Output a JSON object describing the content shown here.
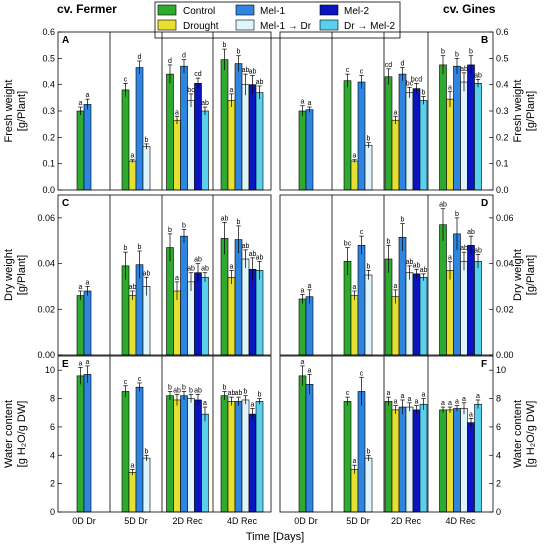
{
  "cultivars": [
    "cv. Fermer",
    "cv. Gines"
  ],
  "xlabel": "Time [Days]",
  "legend": {
    "entries": [
      {
        "key": "control",
        "name": "Control"
      },
      {
        "key": "drought",
        "name": "Drought"
      },
      {
        "key": "mel1",
        "name": "Mel-1"
      },
      {
        "key": "mel1dr",
        "name": "Mel-1 → Dr"
      },
      {
        "key": "mel2",
        "name": "Mel-2"
      },
      {
        "key": "drmel2",
        "name": "Dr → Mel-2"
      }
    ],
    "placement": "top-center"
  },
  "colors": {
    "control": "#2eaa2e",
    "drought": "#e8e030",
    "mel1": "#2f86e0",
    "mel1dr": "#dff4fb",
    "mel2": "#0a14c0",
    "drmel2": "#58d0ee"
  },
  "rows": [
    {
      "panel_left": "A",
      "panel_right": "B",
      "ylabel": [
        "Fresh weight",
        "[g/Plant]"
      ],
      "ylim": [
        0,
        0.6
      ],
      "ticks": [
        "0.0",
        "0.1",
        "0.2",
        "0.3",
        "0.4",
        "0.5",
        "0.6"
      ]
    },
    {
      "panel_left": "C",
      "panel_right": "D",
      "ylabel": [
        "Dry weight",
        "[g/Plant]"
      ],
      "ylim": [
        0,
        0.07
      ],
      "ticks": [
        "0.00",
        "0.02",
        "0.04",
        "0.06"
      ]
    },
    {
      "panel_left": "E",
      "panel_right": "F",
      "ylabel": [
        "Water content",
        "[g H₂O/g DW]"
      ],
      "ylim": [
        0,
        11
      ],
      "ticks": [
        "0",
        "2",
        "4",
        "6",
        "8",
        "10"
      ]
    }
  ],
  "chart_data": [
    {
      "type": "bar",
      "title": "cv. Fermer",
      "panel": "A",
      "ylabel": "Fresh weight [g/Plant]",
      "ylim": [
        0,
        0.6
      ],
      "categories": [
        "0D Dr",
        "5D Dr",
        "2D Rec",
        "4D Rec"
      ],
      "groups": [
        {
          "category": "0D Dr",
          "bars": [
            {
              "s": "control",
              "v": 0.3,
              "e": 0.015,
              "l": "a"
            },
            {
              "s": "mel1",
              "v": 0.325,
              "e": 0.02,
              "l": "a"
            }
          ]
        },
        {
          "category": "5D Dr",
          "bars": [
            {
              "s": "control",
              "v": 0.38,
              "e": 0.025,
              "l": "c"
            },
            {
              "s": "drought",
              "v": 0.11,
              "e": 0.005,
              "l": "a"
            },
            {
              "s": "mel1",
              "v": 0.465,
              "e": 0.025,
              "l": "d"
            },
            {
              "s": "mel1dr",
              "v": 0.165,
              "e": 0.01,
              "l": "b"
            }
          ]
        },
        {
          "category": "2D Rec",
          "bars": [
            {
              "s": "control",
              "v": 0.44,
              "e": 0.035,
              "l": "d"
            },
            {
              "s": "drought",
              "v": 0.265,
              "e": 0.015,
              "l": "a"
            },
            {
              "s": "mel1",
              "v": 0.47,
              "e": 0.025,
              "l": "d"
            },
            {
              "s": "mel1dr",
              "v": 0.34,
              "e": 0.025,
              "l": "bc"
            },
            {
              "s": "mel2",
              "v": 0.405,
              "e": 0.02,
              "l": "cd"
            },
            {
              "s": "drmel2",
              "v": 0.3,
              "e": 0.015,
              "l": "ab"
            }
          ]
        },
        {
          "category": "4D Rec",
          "bars": [
            {
              "s": "control",
              "v": 0.495,
              "e": 0.04,
              "l": "b"
            },
            {
              "s": "drought",
              "v": 0.34,
              "e": 0.025,
              "l": "a"
            },
            {
              "s": "mel1",
              "v": 0.48,
              "e": 0.03,
              "l": "b"
            },
            {
              "s": "mel1dr",
              "v": 0.4,
              "e": 0.04,
              "l": "ab"
            },
            {
              "s": "mel2",
              "v": 0.4,
              "e": 0.035,
              "l": "ab"
            },
            {
              "s": "drmel2",
              "v": 0.37,
              "e": 0.025,
              "l": "ab"
            }
          ]
        }
      ]
    },
    {
      "type": "bar",
      "title": "cv. Gines",
      "panel": "B",
      "ylabel": "Fresh weight [g/Plant]",
      "ylim": [
        0,
        0.6
      ],
      "categories": [
        "0D Dr",
        "5D Dr",
        "2D Rec",
        "4D Rec"
      ],
      "groups": [
        {
          "category": "0D Dr",
          "bars": [
            {
              "s": "control",
              "v": 0.3,
              "e": 0.02,
              "l": "a"
            },
            {
              "s": "mel1",
              "v": 0.305,
              "e": 0.01,
              "l": "a"
            }
          ]
        },
        {
          "category": "5D Dr",
          "bars": [
            {
              "s": "control",
              "v": 0.415,
              "e": 0.025,
              "l": "c"
            },
            {
              "s": "drought",
              "v": 0.11,
              "e": 0.005,
              "l": "a"
            },
            {
              "s": "mel1",
              "v": 0.41,
              "e": 0.025,
              "l": "c"
            },
            {
              "s": "mel1dr",
              "v": 0.17,
              "e": 0.01,
              "l": "b"
            }
          ]
        },
        {
          "category": "2D Rec",
          "bars": [
            {
              "s": "control",
              "v": 0.43,
              "e": 0.03,
              "l": "cd"
            },
            {
              "s": "drought",
              "v": 0.265,
              "e": 0.015,
              "l": "a"
            },
            {
              "s": "mel1",
              "v": 0.44,
              "e": 0.025,
              "l": "d"
            },
            {
              "s": "mel1dr",
              "v": 0.37,
              "e": 0.02,
              "l": "bc"
            },
            {
              "s": "mel2",
              "v": 0.385,
              "e": 0.02,
              "l": "bcd"
            },
            {
              "s": "drmel2",
              "v": 0.34,
              "e": 0.015,
              "l": "b"
            }
          ]
        },
        {
          "category": "4D Rec",
          "bars": [
            {
              "s": "control",
              "v": 0.475,
              "e": 0.035,
              "l": "b"
            },
            {
              "s": "drought",
              "v": 0.345,
              "e": 0.03,
              "l": "a"
            },
            {
              "s": "mel1",
              "v": 0.47,
              "e": 0.03,
              "l": "b"
            },
            {
              "s": "mel1dr",
              "v": 0.41,
              "e": 0.035,
              "l": "ab"
            },
            {
              "s": "mel2",
              "v": 0.475,
              "e": 0.035,
              "l": "b"
            },
            {
              "s": "drmel2",
              "v": 0.405,
              "e": 0.015,
              "l": "ab"
            }
          ]
        }
      ]
    },
    {
      "type": "bar",
      "title": "cv. Fermer",
      "panel": "C",
      "ylabel": "Dry weight [g/Plant]",
      "ylim": [
        0,
        0.07
      ],
      "categories": [
        "0D Dr",
        "5D Dr",
        "2D Rec",
        "4D Rec"
      ],
      "groups": [
        {
          "category": "0D Dr",
          "bars": [
            {
              "s": "control",
              "v": 0.026,
              "e": 0.002,
              "l": "a"
            },
            {
              "s": "mel1",
              "v": 0.028,
              "e": 0.002,
              "l": "a"
            }
          ]
        },
        {
          "category": "5D Dr",
          "bars": [
            {
              "s": "control",
              "v": 0.039,
              "e": 0.006,
              "l": "b"
            },
            {
              "s": "drought",
              "v": 0.026,
              "e": 0.002,
              "l": "ab"
            },
            {
              "s": "mel1",
              "v": 0.0395,
              "e": 0.006,
              "l": "b"
            },
            {
              "s": "mel1dr",
              "v": 0.03,
              "e": 0.004,
              "l": "ab"
            }
          ]
        },
        {
          "category": "2D Rec",
          "bars": [
            {
              "s": "control",
              "v": 0.047,
              "e": 0.006,
              "l": "b"
            },
            {
              "s": "drought",
              "v": 0.028,
              "e": 0.004,
              "l": "a"
            },
            {
              "s": "mel1",
              "v": 0.052,
              "e": 0.003,
              "l": "b"
            },
            {
              "s": "mel1dr",
              "v": 0.032,
              "e": 0.004,
              "l": "ab"
            },
            {
              "s": "mel2",
              "v": 0.036,
              "e": 0.004,
              "l": "ab"
            },
            {
              "s": "drmel2",
              "v": 0.034,
              "e": 0.002,
              "l": "ab"
            }
          ]
        },
        {
          "category": "4D Rec",
          "bars": [
            {
              "s": "control",
              "v": 0.051,
              "e": 0.007,
              "l": "ab"
            },
            {
              "s": "drought",
              "v": 0.034,
              "e": 0.003,
              "l": "a"
            },
            {
              "s": "mel1",
              "v": 0.0505,
              "e": 0.006,
              "l": "b"
            },
            {
              "s": "mel1dr",
              "v": 0.042,
              "e": 0.004,
              "l": "ab"
            },
            {
              "s": "mel2",
              "v": 0.0375,
              "e": 0.005,
              "l": "ab"
            },
            {
              "s": "drmel2",
              "v": 0.037,
              "e": 0.004,
              "l": "ab"
            }
          ]
        }
      ]
    },
    {
      "type": "bar",
      "title": "cv. Gines",
      "panel": "D",
      "ylabel": "Dry weight [g/Plant]",
      "ylim": [
        0,
        0.07
      ],
      "categories": [
        "0D Dr",
        "5D Dr",
        "2D Rec",
        "4D Rec"
      ],
      "groups": [
        {
          "category": "0D Dr",
          "bars": [
            {
              "s": "control",
              "v": 0.0245,
              "e": 0.002,
              "l": "a"
            },
            {
              "s": "mel1",
              "v": 0.0255,
              "e": 0.003,
              "l": "a"
            }
          ]
        },
        {
          "category": "5D Dr",
          "bars": [
            {
              "s": "control",
              "v": 0.041,
              "e": 0.006,
              "l": "bc"
            },
            {
              "s": "drought",
              "v": 0.026,
              "e": 0.002,
              "l": "a"
            },
            {
              "s": "mel1",
              "v": 0.048,
              "e": 0.004,
              "l": "c"
            },
            {
              "s": "mel1dr",
              "v": 0.035,
              "e": 0.002,
              "l": "b"
            }
          ]
        },
        {
          "category": "2D Rec",
          "bars": [
            {
              "s": "control",
              "v": 0.042,
              "e": 0.006,
              "l": "b"
            },
            {
              "s": "drought",
              "v": 0.0255,
              "e": 0.003,
              "l": "a"
            },
            {
              "s": "mel1",
              "v": 0.0515,
              "e": 0.006,
              "l": "b"
            },
            {
              "s": "mel1dr",
              "v": 0.036,
              "e": 0.003,
              "l": "ab"
            },
            {
              "s": "mel2",
              "v": 0.0355,
              "e": 0.002,
              "l": "ab"
            },
            {
              "s": "drmel2",
              "v": 0.034,
              "e": 0.0015,
              "l": "ab"
            }
          ]
        },
        {
          "category": "4D Rec",
          "bars": [
            {
              "s": "control",
              "v": 0.057,
              "e": 0.007,
              "l": "ab"
            },
            {
              "s": "drought",
              "v": 0.037,
              "e": 0.004,
              "l": "a"
            },
            {
              "s": "mel1",
              "v": 0.053,
              "e": 0.007,
              "l": "b"
            },
            {
              "s": "mel1dr",
              "v": 0.041,
              "e": 0.004,
              "l": "ab"
            },
            {
              "s": "mel2",
              "v": 0.048,
              "e": 0.004,
              "l": "ab"
            },
            {
              "s": "drmel2",
              "v": 0.041,
              "e": 0.003,
              "l": "ab"
            }
          ]
        }
      ]
    },
    {
      "type": "bar",
      "title": "cv. Fermer",
      "panel": "E",
      "ylabel": "Water content [g H2O/g DW]",
      "ylim": [
        0,
        11
      ],
      "categories": [
        "0D Dr",
        "5D Dr",
        "2D Rec",
        "4D Rec"
      ],
      "groups": [
        {
          "category": "0D Dr",
          "bars": [
            {
              "s": "control",
              "v": 9.6,
              "e": 0.6,
              "l": "a"
            },
            {
              "s": "mel1",
              "v": 9.7,
              "e": 0.6,
              "l": "a"
            }
          ]
        },
        {
          "category": "5D Dr",
          "bars": [
            {
              "s": "control",
              "v": 8.5,
              "e": 0.4,
              "l": "c"
            },
            {
              "s": "drought",
              "v": 2.8,
              "e": 0.2,
              "l": "a"
            },
            {
              "s": "mel1",
              "v": 8.8,
              "e": 0.3,
              "l": "c"
            },
            {
              "s": "mel1dr",
              "v": 3.8,
              "e": 0.2,
              "l": "b"
            }
          ]
        },
        {
          "category": "2D Rec",
          "bars": [
            {
              "s": "control",
              "v": 8.2,
              "e": 0.3,
              "l": "b"
            },
            {
              "s": "drought",
              "v": 7.9,
              "e": 0.4,
              "l": "ab"
            },
            {
              "s": "mel1",
              "v": 8.2,
              "e": 0.3,
              "l": "b"
            },
            {
              "s": "mel1dr",
              "v": 8.0,
              "e": 0.3,
              "l": "b"
            },
            {
              "s": "mel2",
              "v": 7.9,
              "e": 0.4,
              "l": "ab"
            },
            {
              "s": "drmel2",
              "v": 6.9,
              "e": 0.5,
              "l": "a"
            }
          ]
        },
        {
          "category": "4D Rec",
          "bars": [
            {
              "s": "control",
              "v": 8.2,
              "e": 0.3,
              "l": "b"
            },
            {
              "s": "drought",
              "v": 7.8,
              "e": 0.3,
              "l": "ab"
            },
            {
              "s": "mel1",
              "v": 7.8,
              "e": 0.3,
              "l": "ab"
            },
            {
              "s": "mel1dr",
              "v": 7.9,
              "e": 0.3,
              "l": "b"
            },
            {
              "s": "mel2",
              "v": 6.9,
              "e": 0.4,
              "l": "a"
            },
            {
              "s": "drmel2",
              "v": 7.8,
              "e": 0.2,
              "l": "b"
            }
          ]
        }
      ]
    },
    {
      "type": "bar",
      "title": "cv. Gines",
      "panel": "F",
      "ylabel": "Water content [g H2O/g DW]",
      "ylim": [
        0,
        11
      ],
      "categories": [
        "0D Dr",
        "5D Dr",
        "2D Rec",
        "4D Rec"
      ],
      "groups": [
        {
          "category": "0D Dr",
          "bars": [
            {
              "s": "control",
              "v": 9.6,
              "e": 0.7,
              "l": "a"
            },
            {
              "s": "mel1",
              "v": 9.0,
              "e": 0.7,
              "l": "a"
            }
          ]
        },
        {
          "category": "5D Dr",
          "bars": [
            {
              "s": "control",
              "v": 7.8,
              "e": 0.3,
              "l": "c"
            },
            {
              "s": "drought",
              "v": 3.0,
              "e": 0.3,
              "l": "a"
            },
            {
              "s": "mel1",
              "v": 8.5,
              "e": 1.0,
              "l": "c"
            },
            {
              "s": "mel1dr",
              "v": 3.8,
              "e": 0.2,
              "l": "b"
            }
          ]
        },
        {
          "category": "2D Rec",
          "bars": [
            {
              "s": "control",
              "v": 7.8,
              "e": 0.3,
              "l": "a"
            },
            {
              "s": "drought",
              "v": 7.2,
              "e": 0.3,
              "l": "a"
            },
            {
              "s": "mel1",
              "v": 7.4,
              "e": 0.5,
              "l": "a"
            },
            {
              "s": "mel1dr",
              "v": 7.4,
              "e": 0.3,
              "l": "a"
            },
            {
              "s": "mel2",
              "v": 7.2,
              "e": 0.3,
              "l": "a"
            },
            {
              "s": "drmel2",
              "v": 7.6,
              "e": 0.4,
              "l": "a"
            }
          ]
        },
        {
          "category": "4D Rec",
          "bars": [
            {
              "s": "control",
              "v": 7.2,
              "e": 0.2,
              "l": "a"
            },
            {
              "s": "drought",
              "v": 7.2,
              "e": 0.2,
              "l": "a"
            },
            {
              "s": "mel1",
              "v": 7.3,
              "e": 0.2,
              "l": "a"
            },
            {
              "s": "mel1dr",
              "v": 7.3,
              "e": 0.4,
              "l": "a"
            },
            {
              "s": "mel2",
              "v": 6.3,
              "e": 0.3,
              "l": "a"
            },
            {
              "s": "drmel2",
              "v": 7.6,
              "e": 0.3,
              "l": "a"
            }
          ]
        }
      ]
    }
  ]
}
